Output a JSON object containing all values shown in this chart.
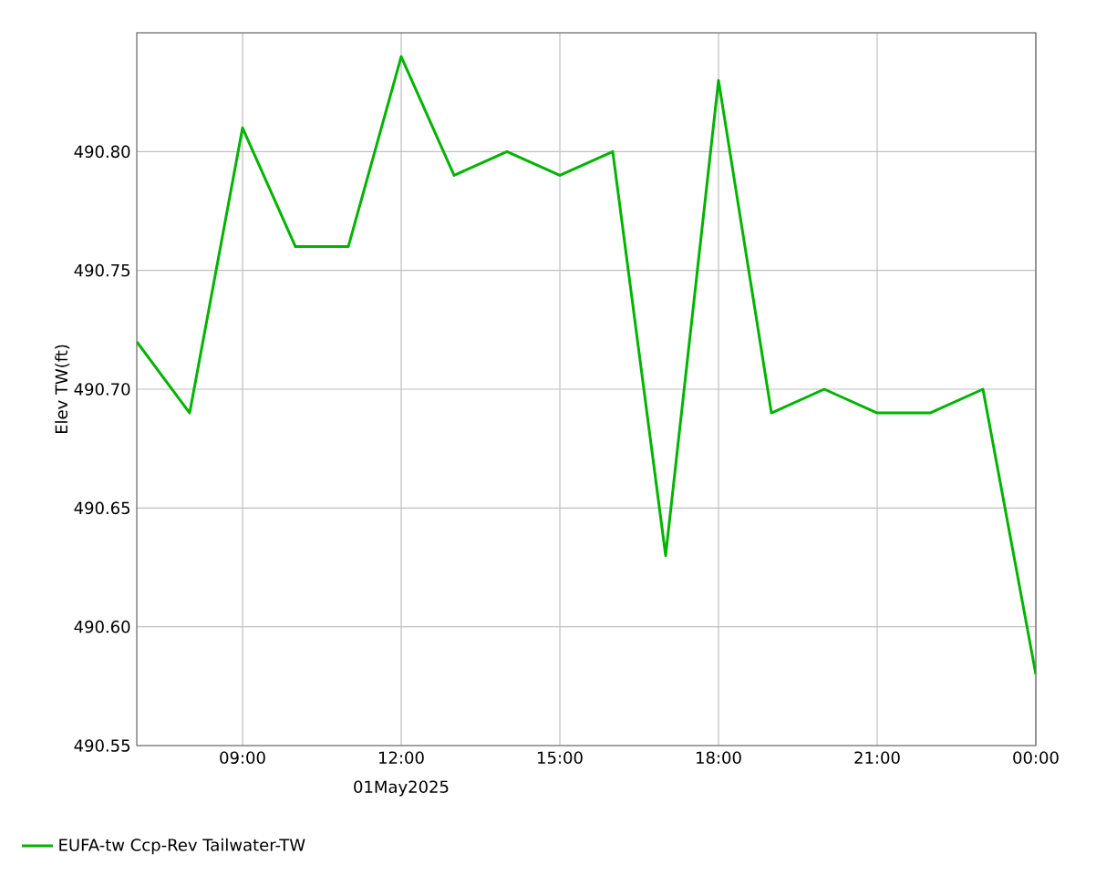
{
  "chart_data": {
    "type": "line",
    "ylabel": "Elev TW(ft)",
    "xlabel": "01May2025",
    "x": [
      7,
      8,
      9,
      10,
      11,
      12,
      13,
      14,
      15,
      16,
      17,
      18,
      19,
      20,
      21,
      22,
      23,
      24
    ],
    "series": [
      {
        "name": "EUFA-tw Ccp-Rev Tailwater-TW",
        "color": "#00b400",
        "values": [
          490.72,
          490.69,
          490.81,
          490.76,
          490.76,
          490.84,
          490.79,
          490.8,
          490.79,
          490.8,
          490.63,
          490.83,
          490.69,
          490.7,
          490.69,
          490.69,
          490.7,
          490.58
        ]
      }
    ],
    "xlim": [
      7,
      24
    ],
    "xticks": [
      {
        "value": 9,
        "label": "09:00"
      },
      {
        "value": 12,
        "label": "12:00"
      },
      {
        "value": 15,
        "label": "15:00"
      },
      {
        "value": 18,
        "label": "18:00"
      },
      {
        "value": 21,
        "label": "21:00"
      },
      {
        "value": 24,
        "label": "00:00"
      }
    ],
    "ylim": [
      490.55,
      490.85
    ],
    "yticks": [
      {
        "value": 490.55,
        "label": "490.55"
      },
      {
        "value": 490.6,
        "label": "490.60"
      },
      {
        "value": 490.65,
        "label": "490.65"
      },
      {
        "value": 490.7,
        "label": "490.70"
      },
      {
        "value": 490.75,
        "label": "490.75"
      },
      {
        "value": 490.8,
        "label": "490.80"
      },
      {
        "value": 490.85,
        "label": null
      }
    ],
    "grid": true,
    "legend": "bottom left",
    "marker": "none",
    "line_style": "solid"
  }
}
